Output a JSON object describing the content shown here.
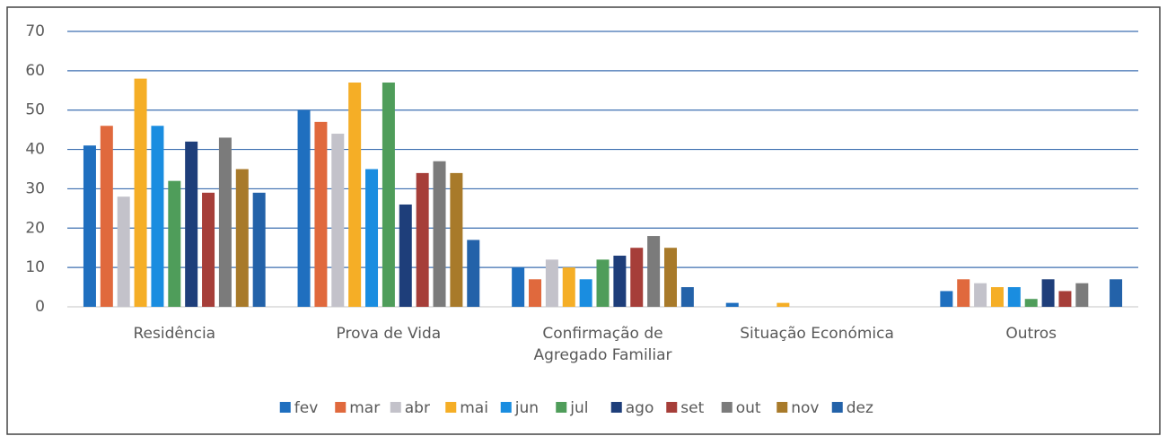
{
  "chart_data": {
    "type": "bar",
    "categories": [
      "Residência",
      "Prova de Vida",
      "Confirmação de Agregado Familiar",
      "Situação Económica",
      "Outros"
    ],
    "series": [
      {
        "name": "fev",
        "color": "#1f6fbf",
        "values": [
          41,
          50,
          10,
          1,
          4
        ]
      },
      {
        "name": "mar",
        "color": "#e0693d",
        "values": [
          46,
          47,
          7,
          0,
          7
        ]
      },
      {
        "name": "abr",
        "color": "#c3c2ca",
        "values": [
          28,
          44,
          12,
          0,
          6
        ]
      },
      {
        "name": "mai",
        "color": "#f5ae26",
        "values": [
          58,
          57,
          10,
          1,
          5
        ]
      },
      {
        "name": "jun",
        "color": "#1a8de0",
        "values": [
          46,
          35,
          7,
          0,
          5
        ]
      },
      {
        "name": "jul",
        "color": "#4f9d5a",
        "values": [
          32,
          57,
          12,
          0,
          2
        ]
      },
      {
        "name": "ago",
        "color": "#1e3e7a",
        "values": [
          42,
          26,
          13,
          0,
          7
        ]
      },
      {
        "name": "set",
        "color": "#a63e39",
        "values": [
          29,
          34,
          15,
          0,
          4
        ]
      },
      {
        "name": "out",
        "color": "#7b7b7b",
        "values": [
          43,
          37,
          18,
          0,
          6
        ]
      },
      {
        "name": "nov",
        "color": "#a87a2a",
        "values": [
          35,
          34,
          15,
          0,
          0
        ]
      },
      {
        "name": "dez",
        "color": "#2362a9",
        "values": [
          29,
          17,
          5,
          0,
          7
        ]
      }
    ],
    "ylim": [
      0,
      70
    ],
    "yticks": [
      0,
      10,
      20,
      30,
      40,
      50,
      60,
      70
    ],
    "grid": true,
    "legend": "bottom"
  }
}
